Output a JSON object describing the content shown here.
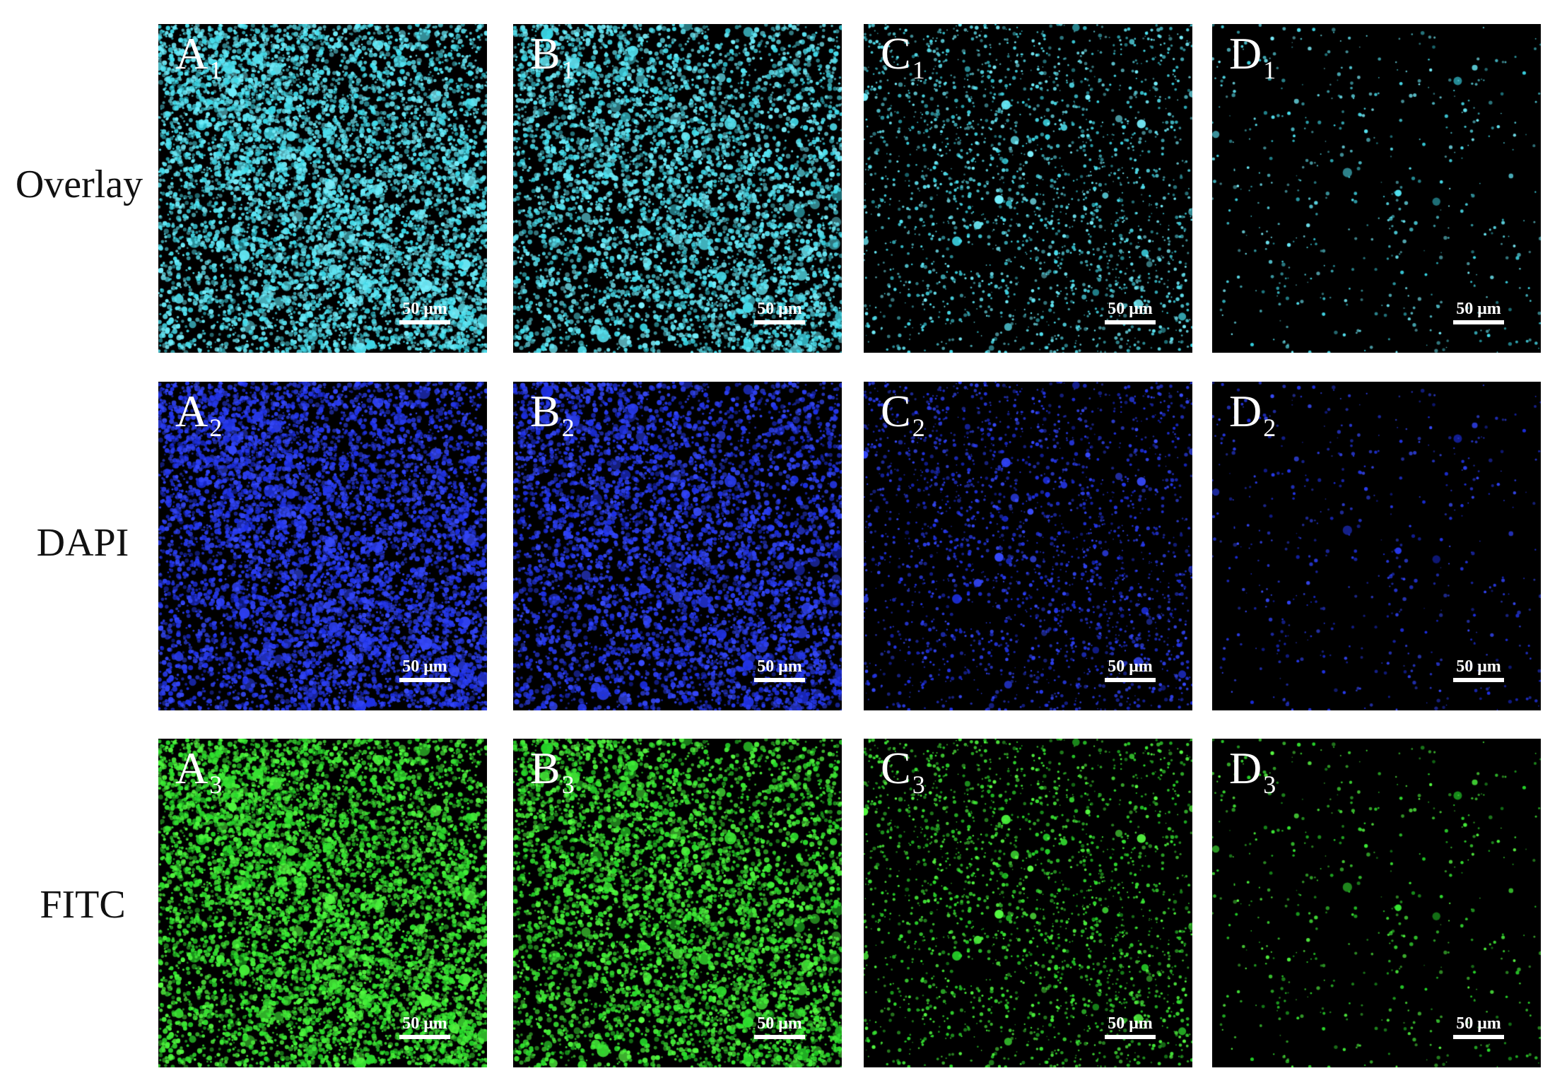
{
  "rows": [
    {
      "label": "Overlay",
      "colors": [
        "#36d6e6",
        "#7ef2ff"
      ]
    },
    {
      "label": "DAPI",
      "colors": [
        "#1a2ce0",
        "#3a4dff"
      ]
    },
    {
      "label": "FITC",
      "colors": [
        "#22d628",
        "#5cff45"
      ]
    }
  ],
  "panels": [
    [
      {
        "letter": "A",
        "sub": "1"
      },
      {
        "letter": "B",
        "sub": "1"
      },
      {
        "letter": "C",
        "sub": "1"
      },
      {
        "letter": "D",
        "sub": "1"
      }
    ],
    [
      {
        "letter": "A",
        "sub": "2"
      },
      {
        "letter": "B",
        "sub": "2"
      },
      {
        "letter": "C",
        "sub": "2"
      },
      {
        "letter": "D",
        "sub": "2"
      }
    ],
    [
      {
        "letter": "A",
        "sub": "3"
      },
      {
        "letter": "B",
        "sub": "3"
      },
      {
        "letter": "C",
        "sub": "3"
      },
      {
        "letter": "D",
        "sub": "3"
      }
    ]
  ],
  "scale_bar_text": "50 μm",
  "column_density": [
    0.95,
    0.8,
    0.5,
    0.22
  ]
}
